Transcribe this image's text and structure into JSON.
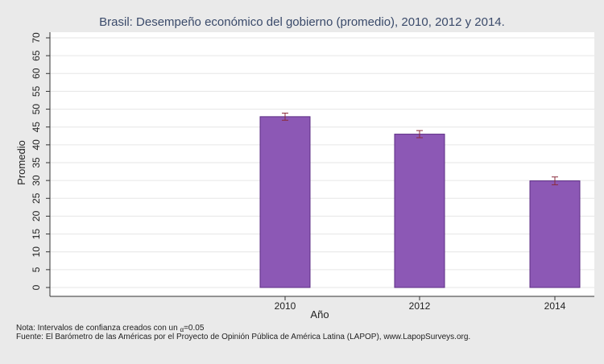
{
  "chart_data": {
    "type": "bar",
    "title": "Brasil: Desempeño económico del gobierno (promedio), 2010, 2012 y 2014.",
    "xlabel": "Año",
    "ylabel": "Promedio",
    "categories": [
      "2010",
      "2012",
      "2014"
    ],
    "values": [
      47.9,
      43.0,
      29.9
    ],
    "error_bars": [
      {
        "low": 46.9,
        "high": 48.9
      },
      {
        "low": 42.0,
        "high": 44.0
      },
      {
        "low": 28.8,
        "high": 31.0
      }
    ],
    "ylim": [
      0,
      70
    ],
    "yticks": [
      0,
      5,
      10,
      15,
      20,
      25,
      30,
      35,
      40,
      45,
      50,
      55,
      60,
      65,
      70
    ],
    "grid": true,
    "legend": "none",
    "colors": {
      "bar_fill": "#8c58b5",
      "bar_stroke": "#5c2c84",
      "error_bar": "#8b2c3c",
      "plot_bg": "#ffffff",
      "page_bg": "#eaeaea",
      "grid": "#e6e6e6",
      "title": "#3a4a6a"
    }
  },
  "notes": {
    "line1_prefix": "Nota: Intervalos de confianza creados con un ",
    "alpha_symbol": "α",
    "line1_suffix": "=0.05",
    "line2": "Fuente: El Barómetro de las Américas por el Proyecto de Opinión Pública de América Latina (LAPOP), www.LapopSurveys.org."
  }
}
